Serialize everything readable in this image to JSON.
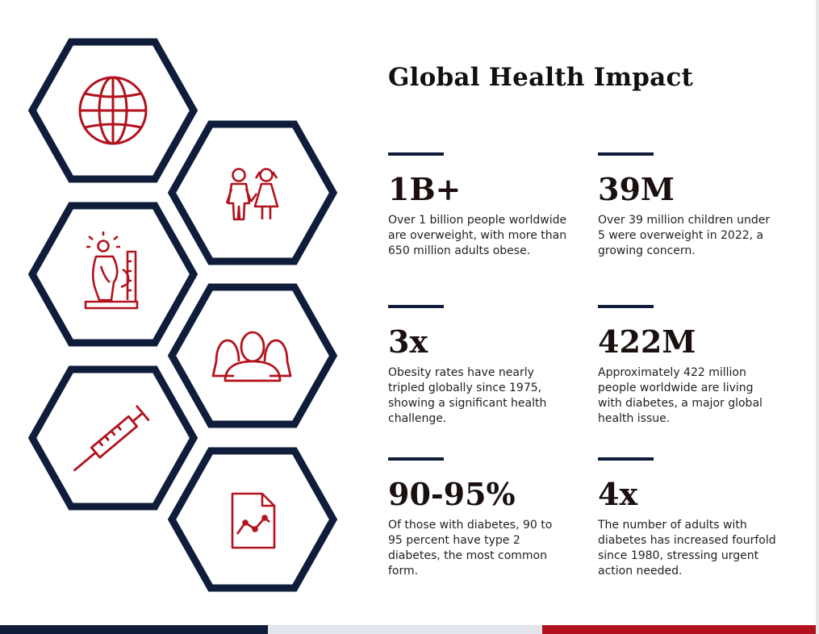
{
  "title": "Global Health Impact",
  "colors": {
    "navy": "#0f1d3a",
    "accent_red": "#b2121d",
    "light_gray": "#e2e5ec"
  },
  "icons": [
    "globe-icon",
    "children-icon",
    "height-measure-icon",
    "group-icon",
    "syringe-icon",
    "chart-document-icon"
  ],
  "stats": [
    {
      "value": "1B+",
      "description": "Over 1 billion people worldwide are overweight, with more than 650 million adults obese."
    },
    {
      "value": "39M",
      "description": "Over 39 million children under 5 were overweight in 2022, a growing concern."
    },
    {
      "value": "3x",
      "description": "Obesity rates have nearly tripled globally since 1975, showing a significant health challenge."
    },
    {
      "value": "422M",
      "description": "Approximately 422 million people worldwide are living with diabetes, a major global health issue."
    },
    {
      "value": "90-95%",
      "description": "Of those with diabetes, 90 to 95 percent have type 2 diabetes, the most common form."
    },
    {
      "value": "4x",
      "description": "The number of adults with diabetes has increased fourfold since 1980, stressing urgent action needed."
    }
  ]
}
